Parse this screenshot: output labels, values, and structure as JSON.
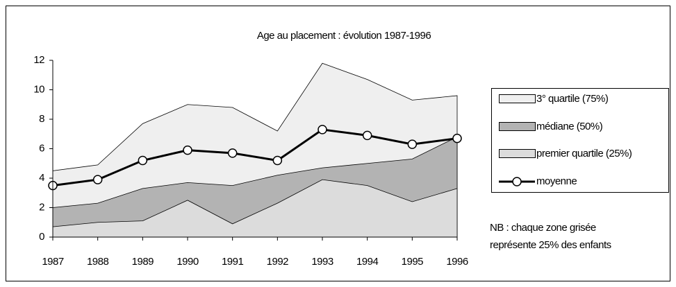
{
  "chart_data": {
    "type": "area",
    "title": "Age au placement : évolution 1987-1996",
    "categories": [
      "1987",
      "1988",
      "1989",
      "1990",
      "1991",
      "1992",
      "1993",
      "1994",
      "1995",
      "1996"
    ],
    "series": [
      {
        "name": "3° quartile (75%)",
        "type": "area",
        "color": "#efefef",
        "values": [
          4.5,
          4.9,
          7.7,
          9.0,
          8.8,
          7.2,
          11.8,
          10.7,
          9.3,
          9.6
        ]
      },
      {
        "name": "médiane (50%)",
        "type": "area",
        "color": "#b3b3b3",
        "values": [
          2.0,
          2.3,
          3.3,
          3.7,
          3.5,
          4.2,
          4.7,
          5.0,
          5.3,
          6.8
        ]
      },
      {
        "name": "premier quartile (25%)",
        "type": "area",
        "color": "#dcdcdc",
        "values": [
          0.7,
          1.0,
          1.1,
          2.5,
          0.9,
          2.3,
          3.9,
          3.5,
          2.4,
          3.3
        ]
      },
      {
        "name": "moyenne",
        "type": "line",
        "color": "#000000",
        "values": [
          3.5,
          3.9,
          5.2,
          5.9,
          5.7,
          5.2,
          7.3,
          6.9,
          6.3,
          6.7
        ]
      }
    ],
    "ylim": [
      0,
      12
    ],
    "yticks": [
      0,
      2,
      4,
      6,
      8,
      10,
      12
    ],
    "annotations": [
      "NB : chaque zone grisée",
      "représente 25% des enfants"
    ]
  }
}
